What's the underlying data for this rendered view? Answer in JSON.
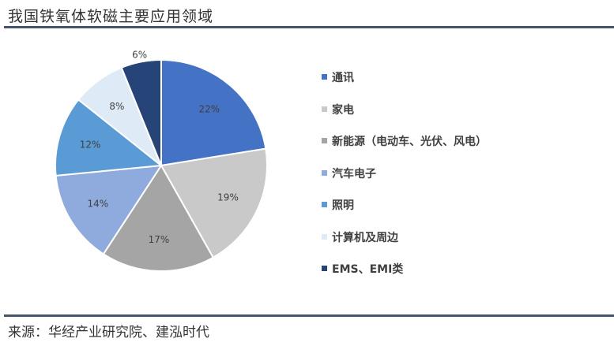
{
  "title": "我国铁氧体软磁主要应用领域",
  "source": "来源：华经产业研究院、建泓时代",
  "chart_data": {
    "type": "pie",
    "title": "我国铁氧体软磁主要应用领域",
    "legend_position": "right",
    "start": "top, clockwise",
    "slices": [
      {
        "label": "通讯",
        "value": 22,
        "display": "22%",
        "color": "#4472C4"
      },
      {
        "label": "家电",
        "value": 19,
        "display": "19%",
        "color": "#C9C9C9"
      },
      {
        "label": "新能源（电动车、光伏、风电）",
        "value": 17,
        "display": "17%",
        "color": "#A5A5A5"
      },
      {
        "label": "汽车电子",
        "value": 14,
        "display": "14%",
        "color": "#8FAADC"
      },
      {
        "label": "照明",
        "value": 12,
        "display": "12%",
        "color": "#5B9BD5"
      },
      {
        "label": "计算机及周边",
        "value": 8,
        "display": "8%",
        "color": "#DEEBF7"
      },
      {
        "label": "EMS、EMI类",
        "value": 6,
        "display": "6%",
        "color": "#264478"
      }
    ]
  }
}
